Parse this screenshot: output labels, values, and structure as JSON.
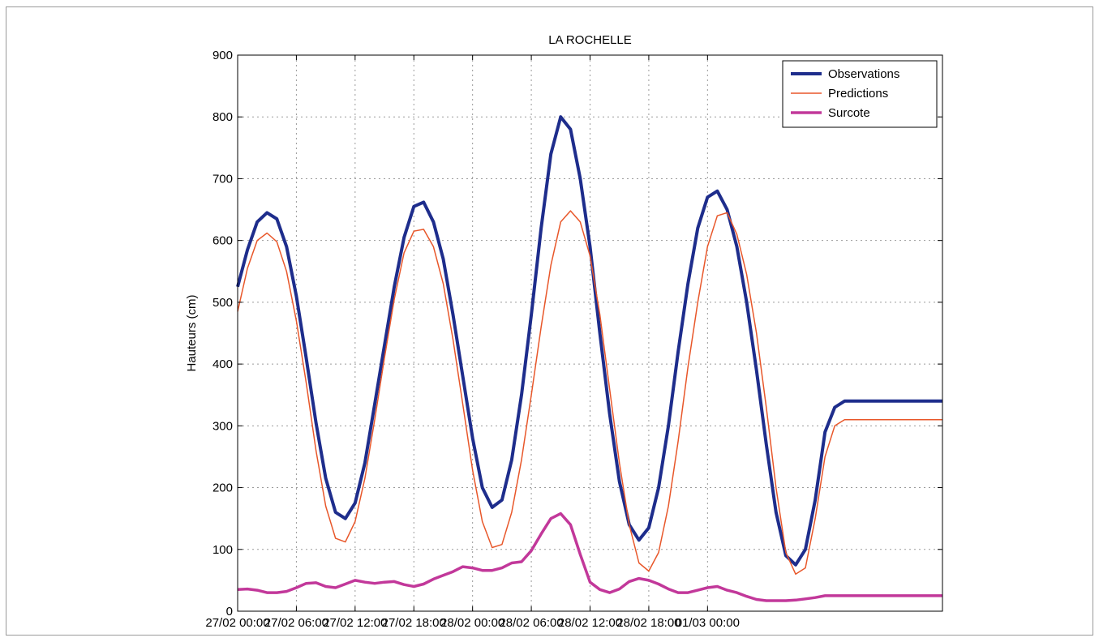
{
  "chart_data": {
    "type": "line",
    "title": "LA ROCHELLE",
    "xlabel": "",
    "ylabel": "Hauteurs (cm)",
    "xlim": [
      0,
      72
    ],
    "ylim": [
      0,
      900
    ],
    "x_unit": "hours from 27/02 00:00",
    "x_ticks": [
      0,
      6,
      12,
      18,
      24,
      30,
      36,
      42,
      48
    ],
    "x_tick_labels": [
      "27/02 00:00",
      "27/02 06:00",
      "27/02 12:00",
      "27/02 18:00",
      "28/02 00:00",
      "28/02 06:00",
      "28/02 12:00",
      "28/02 18:00",
      "01/03 00:00"
    ],
    "y_ticks": [
      0,
      100,
      200,
      300,
      400,
      500,
      600,
      700,
      800,
      900
    ],
    "grid": true,
    "legend_position": "top-right",
    "series": [
      {
        "name": "Observations",
        "color": "#1e2d8c",
        "x": [
          0,
          1,
          2,
          3,
          4,
          5,
          6,
          7,
          8,
          9,
          10,
          11,
          12,
          13,
          14,
          15,
          16,
          17,
          18,
          19,
          20,
          21,
          22,
          23,
          24,
          25,
          26,
          27,
          28,
          29,
          30,
          31,
          32,
          33,
          34,
          35,
          36,
          37,
          38,
          39,
          40,
          41,
          42,
          43,
          44,
          45,
          46,
          47,
          48,
          49,
          50,
          51,
          52,
          53,
          54,
          55,
          56,
          57,
          58,
          59,
          60,
          61,
          62,
          63,
          64,
          65,
          66,
          67,
          68,
          69,
          70,
          71,
          72
        ],
        "values": [
          525,
          585,
          630,
          645,
          635,
          590,
          510,
          410,
          305,
          215,
          160,
          150,
          175,
          240,
          335,
          430,
          525,
          605,
          655,
          662,
          630,
          570,
          480,
          380,
          280,
          200,
          168,
          180,
          245,
          350,
          480,
          620,
          740,
          800,
          780,
          700,
          590,
          450,
          320,
          210,
          140,
          115,
          135,
          200,
          300,
          420,
          530,
          620,
          670,
          680,
          650,
          590,
          500,
          390,
          270,
          160,
          90,
          75,
          100,
          180,
          290,
          330,
          340,
          340,
          340,
          340,
          340,
          340,
          340,
          340,
          340,
          340,
          340
        ]
      },
      {
        "name": "Predictions",
        "color": "#e8572a",
        "x": [
          0,
          1,
          2,
          3,
          4,
          5,
          6,
          7,
          8,
          9,
          10,
          11,
          12,
          13,
          14,
          15,
          16,
          17,
          18,
          19,
          20,
          21,
          22,
          23,
          24,
          25,
          26,
          27,
          28,
          29,
          30,
          31,
          32,
          33,
          34,
          35,
          36,
          37,
          38,
          39,
          40,
          41,
          42,
          43,
          44,
          45,
          46,
          47,
          48,
          49,
          50,
          51,
          52,
          53,
          54,
          55,
          56,
          57,
          58,
          59,
          60,
          61,
          62,
          63,
          64,
          65,
          66,
          67,
          68,
          69,
          70,
          71,
          72
        ],
        "values": [
          485,
          555,
          600,
          612,
          598,
          550,
          470,
          370,
          260,
          170,
          118,
          112,
          145,
          215,
          310,
          410,
          505,
          580,
          615,
          618,
          590,
          530,
          440,
          335,
          228,
          145,
          103,
          108,
          160,
          245,
          350,
          460,
          560,
          630,
          648,
          630,
          575,
          480,
          360,
          240,
          140,
          78,
          65,
          95,
          170,
          275,
          395,
          500,
          590,
          640,
          645,
          610,
          545,
          450,
          330,
          200,
          95,
          60,
          70,
          150,
          250,
          300,
          310,
          310,
          310,
          310,
          310,
          310,
          310,
          310,
          310,
          310,
          310
        ]
      },
      {
        "name": "Surcote",
        "color": "#c2389a",
        "x": [
          0,
          1,
          2,
          3,
          4,
          5,
          6,
          7,
          8,
          9,
          10,
          11,
          12,
          13,
          14,
          15,
          16,
          17,
          18,
          19,
          20,
          21,
          22,
          23,
          24,
          25,
          26,
          27,
          28,
          29,
          30,
          31,
          32,
          33,
          34,
          35,
          36,
          37,
          38,
          39,
          40,
          41,
          42,
          43,
          44,
          45,
          46,
          47,
          48,
          49,
          50,
          51,
          52,
          53,
          54,
          55,
          56,
          57,
          58,
          59,
          60,
          61,
          62,
          63,
          64,
          65,
          66,
          67,
          68,
          69,
          70,
          71,
          72
        ],
        "values": [
          35,
          36,
          34,
          30,
          30,
          32,
          38,
          45,
          46,
          40,
          38,
          44,
          50,
          47,
          45,
          47,
          48,
          43,
          40,
          44,
          52,
          58,
          64,
          72,
          70,
          66,
          66,
          70,
          78,
          80,
          98,
          125,
          150,
          158,
          140,
          92,
          47,
          35,
          30,
          36,
          48,
          53,
          50,
          44,
          36,
          30,
          30,
          34,
          38,
          40,
          34,
          30,
          24,
          19,
          17,
          17,
          17,
          18,
          20,
          22,
          25,
          25,
          25,
          25,
          25,
          25,
          25,
          25,
          25,
          25,
          25,
          25,
          25
        ]
      }
    ]
  }
}
